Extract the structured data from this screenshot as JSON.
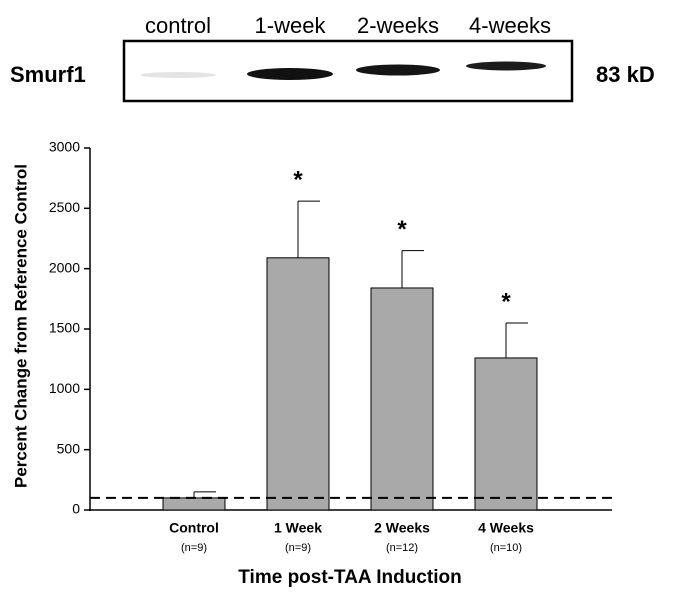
{
  "blot": {
    "protein": "Smurf1",
    "size": "83 kD",
    "lanes": [
      "control",
      "1-week",
      "2-weeks",
      "4-weeks"
    ]
  },
  "chart_data": {
    "type": "bar",
    "y_label": "Percent Change from Reference Control",
    "x_label": "Time post-TAA Induction",
    "categories": [
      "Control",
      "1 Week",
      "2 Weeks",
      "4 Weeks"
    ],
    "n_labels": [
      "(n=9)",
      "(n=9)",
      "(n=12)",
      "(n=10)"
    ],
    "values": [
      100,
      2090,
      1840,
      1260
    ],
    "errors": [
      50,
      470,
      310,
      290
    ],
    "significance": [
      null,
      "*",
      "*",
      "*"
    ],
    "reference_line": 100,
    "color": "#a9a9a9",
    "ylim": [
      0,
      3000
    ],
    "yticks": [
      0,
      500,
      1000,
      1500,
      2000,
      2500,
      3000
    ]
  }
}
